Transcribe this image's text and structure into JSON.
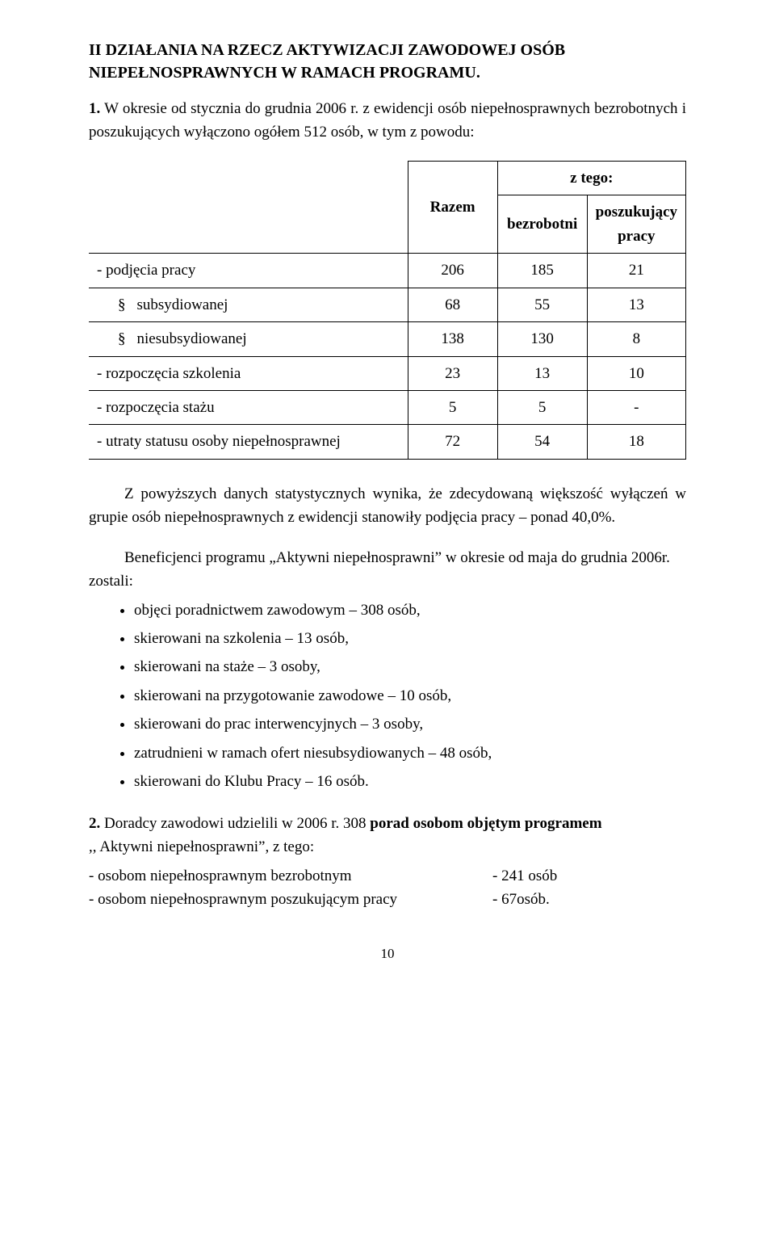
{
  "heading": {
    "line1": "II  DZIAŁANIA NA RZECZ AKTYWIZACJI ZAWODOWEJ OSÓB",
    "line2": "NIEPEŁNOSPRAWNYCH  W RAMACH PROGRAMU."
  },
  "p1_lead": "1.",
  "p1_text": "W okresie od stycznia do grudnia  2006 r.  z ewidencji osób niepełnosprawnych bezrobotnych i poszukujących wyłączono ogółem 512 osób, w tym z powodu:",
  "table": {
    "head": {
      "razem": "Razem",
      "ztego": "z tego:",
      "bezrobotni": "bezrobotni",
      "poszukujacy": "poszukujący pracy"
    },
    "rows": [
      {
        "label": "- podjęcia pracy",
        "sub": false,
        "c1": "206",
        "c2": "185",
        "c3": "21"
      },
      {
        "label": "subsydiowanej",
        "sub": true,
        "c1": "68",
        "c2": "55",
        "c3": "13"
      },
      {
        "label": "niesubsydiowanej",
        "sub": true,
        "c1": "138",
        "c2": "130",
        "c3": "8"
      },
      {
        "label": "- rozpoczęcia szkolenia",
        "sub": false,
        "c1": "23",
        "c2": "13",
        "c3": "10"
      },
      {
        "label": "- rozpoczęcia stażu",
        "sub": false,
        "c1": "5",
        "c2": "5",
        "c3": "-"
      },
      {
        "label": "- utraty statusu osoby niepełnosprawnej",
        "sub": false,
        "c1": "72",
        "c2": "54",
        "c3": "18"
      }
    ]
  },
  "p2": "Z powyższych danych statystycznych wynika, że zdecydowaną większość wyłączeń w grupie osób niepełnosprawnych z ewidencji stanowiły podjęcia pracy – ponad 40,0%.",
  "p3_a": "Beneficjenci programu „Aktywni niepełnosprawni” w okresie od maja do grudnia 2006r.",
  "p3_b": "zostali:",
  "bullets": [
    "objęci poradnictwem zawodowym – 308 osób,",
    "skierowani na szkolenia – 13 osób,",
    "skierowani na staże – 3 osoby,",
    "skierowani na przygotowanie zawodowe – 10 osób,",
    "skierowani do prac interwencyjnych – 3 osoby,",
    "zatrudnieni w ramach ofert niesubsydiowanych – 48 osób,",
    "skierowani do Klubu Pracy – 16 osób."
  ],
  "p4_lead": "2.",
  "p4_a": "Doradcy zawodowi udzielili  w 2006 r. 308 ",
  "p4_bold": "porad osobom objętym programem",
  "p4_b": ",, Aktywni niepełnosprawni”, z tego:",
  "pairs": [
    {
      "left": "- osobom niepełnosprawnym bezrobotnym",
      "right": "- 241 osób"
    },
    {
      "left": "- osobom niepełnosprawnym poszukującym pracy",
      "right": "-  67osób."
    }
  ],
  "page_number": "10"
}
